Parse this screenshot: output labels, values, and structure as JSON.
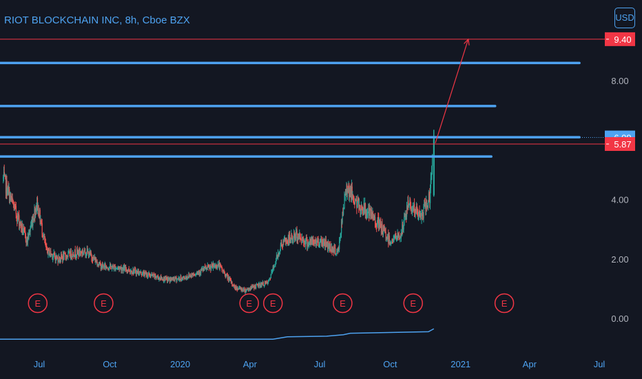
{
  "title": "RIOT BLOCKCHAIN INC, 8h, Cboe BZX",
  "currency_label": "USD",
  "chart_data": {
    "type": "candlestick",
    "ylim": [
      -0.4,
      9.6
    ],
    "y_ticks": [
      "0.00",
      "2.00",
      "4.00",
      "8.00"
    ],
    "x_ticks": [
      "Jul",
      "Oct",
      "2020",
      "Apr",
      "Jul",
      "Oct",
      "2021",
      "Apr",
      "Jul"
    ],
    "x_tick_dates": [
      "2019-07-01",
      "2019-10-01",
      "2020-01-01",
      "2020-04-01",
      "2020-07-01",
      "2020-10-01",
      "2021-01-01",
      "2021-04-01",
      "2021-07-01"
    ],
    "price_anchors": [
      [
        "2019-05-15",
        4.7
      ],
      [
        "2019-05-25",
        4.0
      ],
      [
        "2019-06-15",
        2.6
      ],
      [
        "2019-06-28",
        3.9
      ],
      [
        "2019-07-10",
        2.3
      ],
      [
        "2019-07-25",
        2.0
      ],
      [
        "2019-08-15",
        2.2
      ],
      [
        "2019-09-01",
        2.25
      ],
      [
        "2019-09-20",
        1.75
      ],
      [
        "2019-10-15",
        1.7
      ],
      [
        "2019-11-15",
        1.5
      ],
      [
        "2019-12-15",
        1.3
      ],
      [
        "2020-01-05",
        1.35
      ],
      [
        "2020-02-01",
        1.65
      ],
      [
        "2020-02-20",
        1.8
      ],
      [
        "2020-03-12",
        1.05
      ],
      [
        "2020-03-25",
        0.95
      ],
      [
        "2020-04-10",
        1.1
      ],
      [
        "2020-04-25",
        1.2
      ],
      [
        "2020-05-12",
        2.5
      ],
      [
        "2020-06-01",
        2.8
      ],
      [
        "2020-06-15",
        2.55
      ],
      [
        "2020-07-05",
        2.6
      ],
      [
        "2020-07-25",
        2.2
      ],
      [
        "2020-08-05",
        4.5
      ],
      [
        "2020-08-20",
        3.8
      ],
      [
        "2020-09-01",
        3.6
      ],
      [
        "2020-09-15",
        3.2
      ],
      [
        "2020-10-01",
        2.6
      ],
      [
        "2020-10-15",
        2.8
      ],
      [
        "2020-10-25",
        3.9
      ],
      [
        "2020-11-10",
        3.4
      ],
      [
        "2020-11-22",
        4.1
      ],
      [
        "2020-11-27",
        6.1
      ]
    ],
    "volatility": 0.1,
    "last_price": 6.09,
    "price_line": 5.87,
    "price_labels": [
      "6.09",
      "5.87",
      "9.40"
    ],
    "price_line_color": "#f23645",
    "last_price_color": "#4ea3f1",
    "up_color": "#26a69a",
    "down_color": "#ef5350",
    "resistance_lines": [
      {
        "price": 8.6,
        "end_date": "2021-06-05"
      },
      {
        "price": 7.15,
        "end_date": "2021-02-15"
      },
      {
        "price": 6.1,
        "end_date": "2021-06-05"
      },
      {
        "price": 5.45,
        "end_date": "2021-02-10"
      }
    ],
    "resistance_color": "#4ea3f1",
    "target_line": {
      "price": 9.4,
      "label": "9.40",
      "color": "#f23645"
    },
    "projection_arrow": {
      "from": [
        "2020-11-29",
        5.9
      ],
      "to": [
        "2021-01-11",
        9.4
      ],
      "color": "#f23645"
    },
    "earnings_markers": {
      "label": "E",
      "dates": [
        "2019-06-29",
        "2019-09-23",
        "2020-03-31",
        "2020-05-01",
        "2020-07-31",
        "2020-10-31",
        "2021-02-27"
      ],
      "color": "#f23645"
    },
    "indicator": {
      "color": "#4ea3f1",
      "steps": [
        [
          "2019-05-01",
          -0.7
        ],
        [
          "2020-05-01",
          -0.7
        ],
        [
          "2020-05-20",
          -0.62
        ],
        [
          "2020-07-10",
          -0.6
        ],
        [
          "2020-08-01",
          -0.55
        ],
        [
          "2020-08-10",
          -0.5
        ],
        [
          "2020-11-20",
          -0.45
        ],
        [
          "2020-11-27",
          -0.35
        ]
      ]
    },
    "grid": false,
    "legend": "none"
  }
}
